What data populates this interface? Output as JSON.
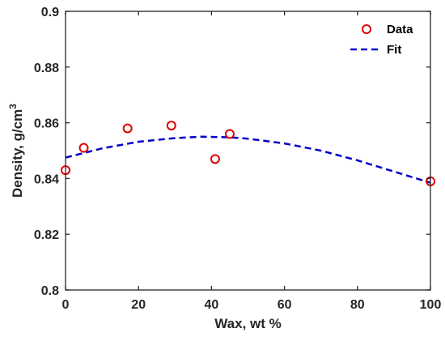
{
  "chart_data": {
    "type": "scatter",
    "title": "",
    "xlabel": "Wax, wt %",
    "ylabel_main": "Density, g/cm",
    "ylabel_sup": "3",
    "xlim": [
      0,
      100
    ],
    "ylim": [
      0.8,
      0.9
    ],
    "x_ticks": [
      "0",
      "20",
      "40",
      "60",
      "80",
      "100"
    ],
    "y_ticks": [
      "0.8",
      "0.82",
      "0.84",
      "0.86",
      "0.88",
      "0.9"
    ],
    "grid": false,
    "legend_position": "top-right",
    "series": [
      {
        "name": "Data",
        "kind": "markers",
        "color": "#e00000",
        "x": [
          0,
          5,
          17,
          29,
          41,
          45,
          100
        ],
        "y": [
          0.843,
          0.851,
          0.858,
          0.859,
          0.847,
          0.856,
          0.839
        ]
      },
      {
        "name": "Fit",
        "kind": "dashed-line",
        "color": "#0000cc",
        "x": [
          0,
          10,
          20,
          30,
          37,
          45,
          50,
          60,
          70,
          80,
          90,
          100
        ],
        "y": [
          0.8475,
          0.8508,
          0.8532,
          0.8545,
          0.855,
          0.8548,
          0.8543,
          0.8526,
          0.85,
          0.8465,
          0.8425,
          0.8385
        ]
      }
    ]
  }
}
